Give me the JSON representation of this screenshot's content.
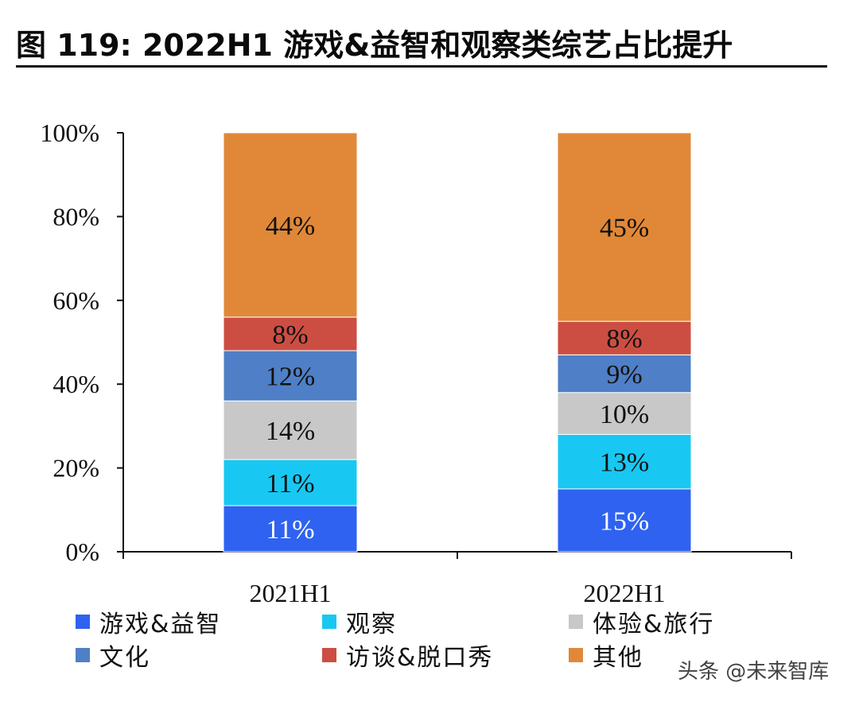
{
  "title": "图 119: 2022H1 游戏&益智和观察类综艺占比提升",
  "watermark": "头条 @未来智库",
  "colors": {
    "游戏&益智": "#2f62f0",
    "观察": "#18c8f2",
    "体验&旅行": "#c8c8c8",
    "文化": "#4f7fc6",
    "访谈&脱口秀": "#cc4e42",
    "其他": "#e08838"
  },
  "chart_data": {
    "type": "bar",
    "stacked": true,
    "categories": [
      "2021H1",
      "2022H1"
    ],
    "series": [
      {
        "name": "游戏&益智",
        "values": [
          11,
          15
        ],
        "labels": [
          "11%",
          "15%"
        ]
      },
      {
        "name": "观察",
        "values": [
          11,
          13
        ],
        "labels": [
          "11%",
          "13%"
        ]
      },
      {
        "name": "体验&旅行",
        "values": [
          14,
          10
        ],
        "labels": [
          "14%",
          "10%"
        ]
      },
      {
        "name": "文化",
        "values": [
          12,
          9
        ],
        "labels": [
          "12%",
          "9%"
        ]
      },
      {
        "name": "访谈&脱口秀",
        "values": [
          8,
          8
        ],
        "labels": [
          "8%",
          "8%"
        ]
      },
      {
        "name": "其他",
        "values": [
          44,
          45
        ],
        "labels": [
          "44%",
          "45%"
        ]
      }
    ],
    "yticks": [
      "0%",
      "20%",
      "40%",
      "60%",
      "80%",
      "100%"
    ],
    "ylim": [
      0,
      100
    ],
    "legend_position": "bottom"
  }
}
